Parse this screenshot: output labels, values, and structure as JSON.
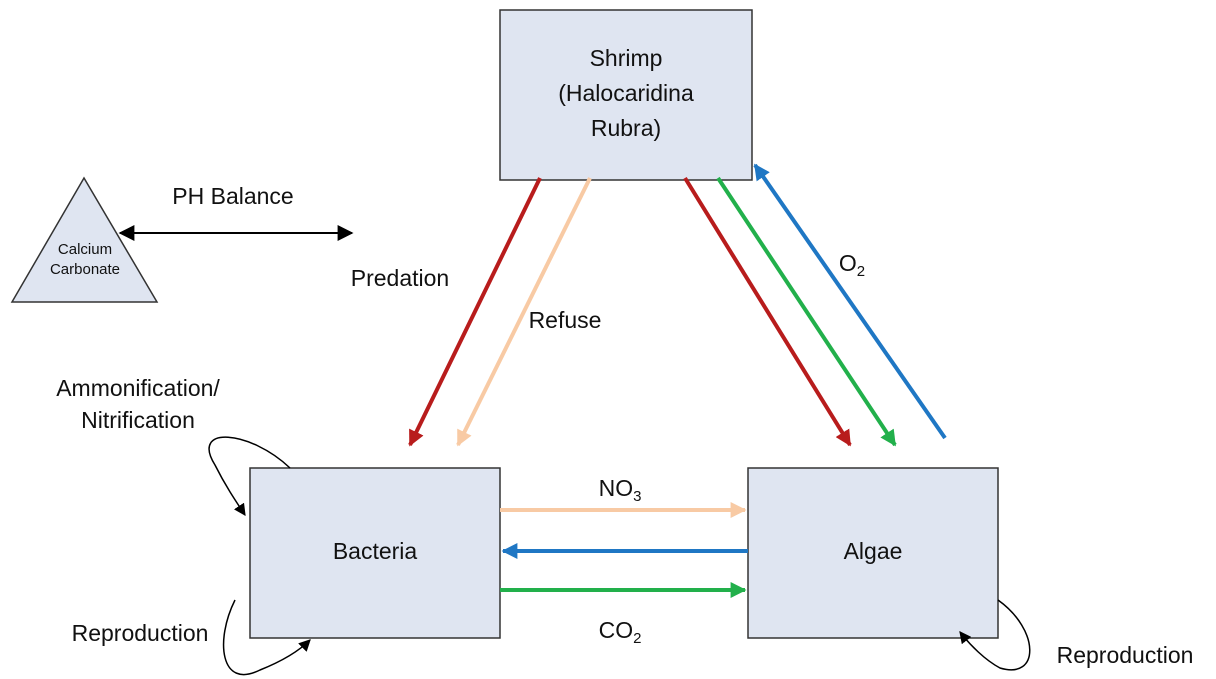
{
  "nodes": [
    {
      "label": [
        "Shrimp",
        "(Halocaridina",
        "Rubra)"
      ]
    },
    {
      "label": [
        "Bacteria"
      ]
    },
    {
      "label": [
        "Algae"
      ]
    },
    {
      "label": [
        "Calcium",
        "Carbonate"
      ]
    }
  ],
  "edges": [
    {
      "label": "PH Balance"
    },
    {
      "label": "Predation"
    },
    {
      "label": "Refuse"
    },
    {
      "label": {
        "base": "O",
        "sub": "2"
      }
    },
    {
      "label": {
        "base": "NO",
        "sub": "3"
      }
    },
    {
      "label": {
        "base": "CO",
        "sub": "2"
      }
    },
    {
      "label": [
        "Ammonification/",
        "Nitrification"
      ]
    },
    {
      "label": "Reproduction"
    },
    {
      "label": "Reproduction"
    }
  ]
}
